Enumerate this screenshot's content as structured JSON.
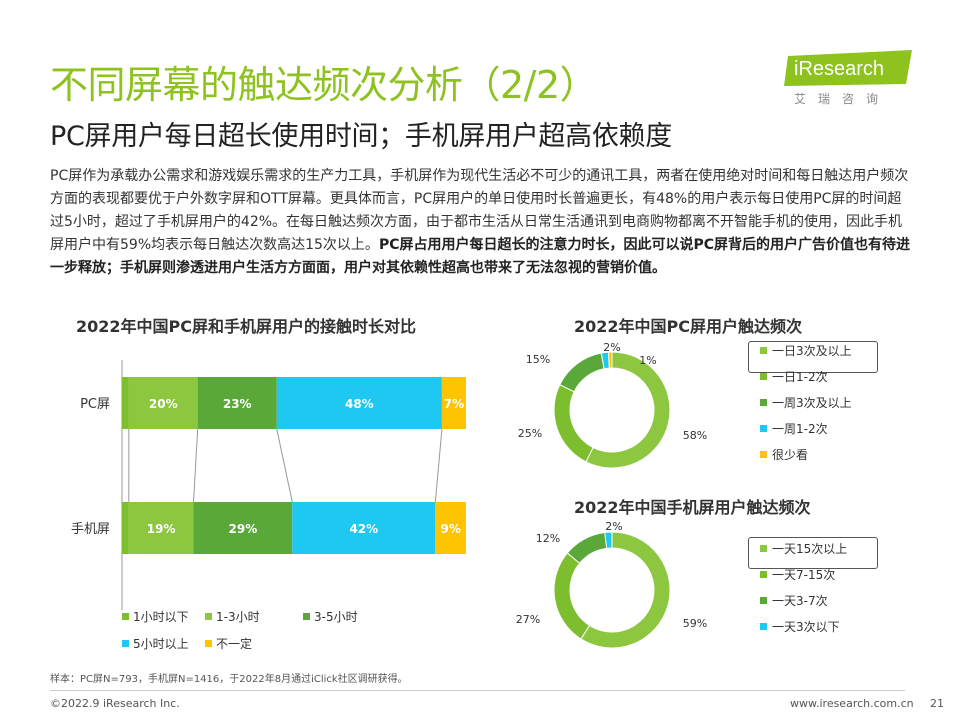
{
  "header": {
    "title": "不同屏幕的触达频次分析（2/2）",
    "subtitle": "PC屏用户每日超长使用时间；手机屏用户超高依赖度"
  },
  "logo": {
    "brand": "iResearch",
    "cn": "艾瑞咨询"
  },
  "body": {
    "normal": "PC屏作为承载办公需求和游戏娱乐需求的生产力工具，手机屏作为现代生活必不可少的通讯工具，两者在使用绝对时间和每日触达用户频次方面的表现都要优于户外数字屏和OTT屏幕。更具体而言，PC屏用户的单日使用时长普遍更长，有48%的用户表示每日使用PC屏的时间超过5小时，超过了手机屏用户的42%。在每日触达频次方面，由于都市生活从日常生活通讯到电商购物都离不开智能手机的使用，因此手机屏用户中有59%均表示每日触达次数高达15次以上。",
    "bold": "PC屏占用用户每日超长的注意力时长，因此可以说PC屏背后的用户广告价值也有待进一步释放；手机屏则渗透进用户生活方方面面，用户对其依赖性超高也带来了无法忽视的营销价值。"
  },
  "colors": {
    "c1": "#8DC63F",
    "c2": "#5BA83A",
    "c3": "#1FC8F0",
    "c4": "#FFC400",
    "c0": "#7DBE2E",
    "title_green": "#8DC21F"
  },
  "chart_data": [
    {
      "type": "bar",
      "orientation": "horizontal-stacked",
      "title": "2022年中国PC屏和手机屏用户的接触时长对比",
      "categories": [
        "PC屏",
        "手机屏"
      ],
      "series": [
        {
          "name": "1小时以下",
          "values": [
            2,
            2
          ],
          "color": "#7DBE2E"
        },
        {
          "name": "1-3小时",
          "values": [
            20,
            19
          ],
          "color": "#8DC63F"
        },
        {
          "name": "3-5小时",
          "values": [
            23,
            29
          ],
          "color": "#5BA83A"
        },
        {
          "name": "5小时以上",
          "values": [
            48,
            42
          ],
          "color": "#1FC8F0"
        },
        {
          "name": "不一定",
          "values": [
            7,
            9
          ],
          "color": "#FFC400"
        }
      ],
      "data_labels": [
        [
          "",
          "20%",
          "23%",
          "48%",
          "7%"
        ],
        [
          "",
          "19%",
          "29%",
          "42%",
          "9%"
        ]
      ],
      "legend": [
        "1小时以下",
        "1-3小时",
        "3-5小时",
        "5小时以上",
        "不一定"
      ]
    },
    {
      "type": "pie",
      "donut": true,
      "title": "2022年中国PC屏用户触达频次",
      "series": [
        {
          "name": "一日3次及以上",
          "value": 58,
          "label": "58%",
          "color": "#8DC63F"
        },
        {
          "name": "一日1-2次",
          "value": 25,
          "label": "25%",
          "color": "#7DBE2E"
        },
        {
          "name": "一周3次及以上",
          "value": 15,
          "label": "15%",
          "color": "#5BA83A"
        },
        {
          "name": "一周1-2次",
          "value": 2,
          "label": "2%",
          "color": "#1FC8F0"
        },
        {
          "name": "很少看",
          "value": 1,
          "label": "1%",
          "color": "#FFC400"
        }
      ]
    },
    {
      "type": "pie",
      "donut": true,
      "title": "2022年中国手机屏用户触达频次",
      "series": [
        {
          "name": "一天15次以上",
          "value": 59,
          "label": "59%",
          "color": "#8DC63F"
        },
        {
          "name": "一天7-15次",
          "value": 27,
          "label": "27%",
          "color": "#7DBE2E"
        },
        {
          "name": "一天3-7次",
          "value": 12,
          "label": "12%",
          "color": "#5BA83A"
        },
        {
          "name": "一天3次以下",
          "value": 2,
          "label": "2%",
          "color": "#1FC8F0"
        }
      ]
    }
  ],
  "note": "样本：PC屏N=793，手机屏N=1416，于2022年8月通过iClick社区调研获得。",
  "footer": {
    "copyright": "©2022.9 iResearch Inc.",
    "url": "www.iresearch.com.cn",
    "page": "21"
  }
}
